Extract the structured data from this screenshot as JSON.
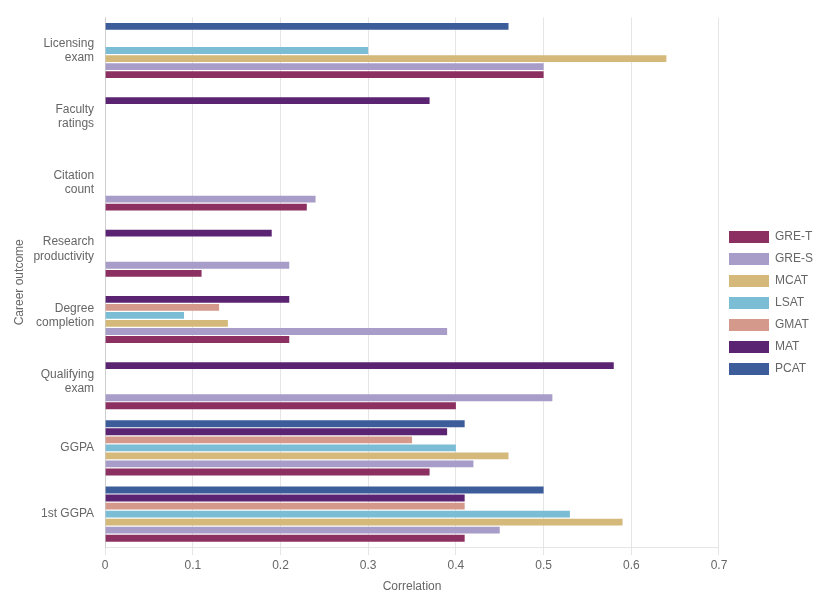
{
  "chart_data": {
    "type": "bar",
    "orientation": "horizontal",
    "categories": [
      "1st GGPA",
      "GGPA",
      "Qualifying\nexam",
      "Degree\ncompletion",
      "Research\nproductivity",
      "Citation\ncount",
      "Faculty\nratings",
      "Licensing\nexam"
    ],
    "series": [
      {
        "name": "GRE-T",
        "color": "#8B3060",
        "values": [
          0.41,
          0.37,
          0.4,
          0.21,
          0.11,
          0.23,
          0.0,
          0.5
        ]
      },
      {
        "name": "GRE-S",
        "color": "#A89CC8",
        "values": [
          0.45,
          0.42,
          0.51,
          0.39,
          0.21,
          0.24,
          0.0,
          0.5
        ]
      },
      {
        "name": "MCAT",
        "color": "#D4B97A",
        "values": [
          0.59,
          0.46,
          0.0,
          0.14,
          0.0,
          0.0,
          0.0,
          0.64
        ]
      },
      {
        "name": "LSAT",
        "color": "#7BBDD4",
        "values": [
          0.53,
          0.4,
          0.0,
          0.09,
          0.0,
          0.0,
          0.0,
          0.3
        ]
      },
      {
        "name": "GMAT",
        "color": "#D4998A",
        "values": [
          0.41,
          0.35,
          0.0,
          0.13,
          0.0,
          0.0,
          0.0,
          0.0
        ]
      },
      {
        "name": "MAT",
        "color": "#5B2472",
        "values": [
          0.41,
          0.39,
          0.58,
          0.21,
          0.19,
          0.0,
          0.37,
          0.0
        ]
      },
      {
        "name": "PCAT",
        "color": "#3D5C9A",
        "values": [
          0.5,
          0.41,
          0.0,
          0.0,
          0.0,
          0.0,
          0.0,
          0.46
        ]
      }
    ],
    "xlabel": "Correlation",
    "ylabel": "Career outcome",
    "xlim": [
      0,
      0.7
    ],
    "xticks": [
      0,
      0.1,
      0.2,
      0.3,
      0.4,
      0.5,
      0.6,
      0.7
    ],
    "grid": "x",
    "legend": "right"
  }
}
